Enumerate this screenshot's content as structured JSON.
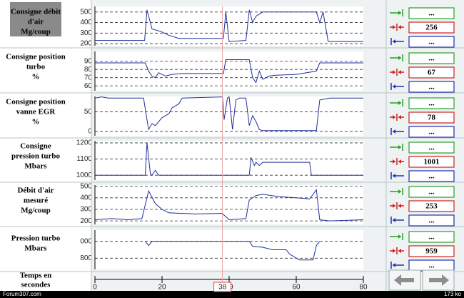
{
  "chart_data": [
    {
      "type": "line",
      "label_lines": [
        "Consigne débit",
        "d'air",
        "Mg/coup"
      ],
      "xlim": [
        0,
        80
      ],
      "ylim": [
        180,
        553
      ],
      "yticks": [
        200,
        300,
        400,
        500
      ],
      "grid": true,
      "color": "#1f2f9a",
      "x": [
        0,
        14.8,
        15.5,
        17,
        20,
        22,
        25,
        38.3,
        39,
        40,
        45,
        46,
        47,
        48,
        50,
        66,
        67,
        68,
        69.5,
        80
      ],
      "values": [
        230,
        230,
        520,
        340,
        310,
        280,
        250,
        250,
        500,
        220,
        230,
        520,
        400,
        460,
        500,
        500,
        400,
        500,
        220,
        220
      ],
      "readouts": [
        "...",
        256,
        "..."
      ]
    },
    {
      "type": "line",
      "label_lines": [
        "Consigne position",
        "turbo",
        "%"
      ],
      "xlim": [
        0,
        80
      ],
      "ylim": [
        54,
        102
      ],
      "yticks": [
        60,
        70,
        80,
        90
      ],
      "grid": true,
      "color": "#1f2f9a",
      "x": [
        0,
        15,
        16,
        17,
        18,
        19,
        21,
        23,
        26,
        38.3,
        39,
        46,
        47,
        48,
        49,
        50,
        52,
        54,
        60,
        66,
        67,
        80
      ],
      "values": [
        88,
        88,
        78,
        72,
        70,
        76,
        72,
        74,
        75,
        75,
        92,
        92,
        70,
        64,
        78,
        68,
        72,
        73,
        74,
        78,
        88,
        88
      ],
      "readouts": [
        "...",
        67,
        "..."
      ]
    },
    {
      "type": "line",
      "label_lines": [
        "Consigne position",
        "vanne EGR",
        "%"
      ],
      "xlim": [
        0,
        80
      ],
      "ylim": [
        -11,
        89
      ],
      "yticks": [
        0,
        50
      ],
      "grid": true,
      "color": "#1f2f9a",
      "x": [
        0,
        2,
        4,
        14.5,
        15.5,
        16,
        17,
        18,
        20,
        22,
        23,
        25,
        26,
        38,
        38.5,
        39.5,
        40,
        41,
        42,
        43,
        45,
        46,
        47,
        48,
        49,
        50,
        66,
        67,
        70,
        80
      ],
      "values": [
        85,
        88,
        85,
        85,
        30,
        5,
        20,
        15,
        35,
        45,
        60,
        70,
        85,
        88,
        30,
        85,
        88,
        5,
        80,
        85,
        85,
        15,
        40,
        25,
        5,
        2,
        2,
        80,
        85,
        85
      ],
      "readouts": [
        "...",
        78,
        "..."
      ]
    },
    {
      "type": "line",
      "label_lines": [
        "Consigne",
        "pression turbo",
        "Mbars"
      ],
      "xlim": [
        0,
        80
      ],
      "ylim": [
        970,
        1213
      ],
      "yticks": [
        1000,
        1100,
        1200
      ],
      "grid": true,
      "color": "#1f2f9a",
      "x": [
        0,
        15,
        15.5,
        16.5,
        17,
        18,
        19,
        46,
        46.5,
        47.5,
        48,
        49,
        50,
        64,
        64.5,
        80
      ],
      "values": [
        1000,
        1000,
        1200,
        1010,
        1000,
        1030,
        1000,
        1000,
        1110,
        1060,
        1080,
        1060,
        1080,
        1080,
        1000,
        1000
      ],
      "readouts": [
        "...",
        1001,
        "..."
      ]
    },
    {
      "type": "line",
      "label_lines": [
        "Débit d'air",
        "mesuré",
        "Mg/coup"
      ],
      "xlim": [
        0,
        80
      ],
      "ylim": [
        170,
        510
      ],
      "yticks": [
        200,
        300,
        400,
        500
      ],
      "grid": true,
      "color": "#1f2f9a",
      "x": [
        0,
        5,
        10,
        14,
        16,
        18,
        20,
        22,
        30,
        38,
        38.5,
        40,
        45,
        46,
        48,
        50,
        55,
        60,
        64,
        66,
        67,
        70,
        80
      ],
      "values": [
        210,
        220,
        210,
        220,
        460,
        350,
        300,
        270,
        260,
        265,
        250,
        210,
        220,
        380,
        420,
        430,
        410,
        400,
        390,
        470,
        210,
        200,
        210
      ],
      "readouts": [
        "...",
        253,
        "..."
      ]
    },
    {
      "type": "line",
      "label_lines": [
        "Pression turbo",
        "Mbars"
      ],
      "xlim": [
        0,
        80
      ],
      "ylim": [
        667,
        1133
      ],
      "yticks": [
        {
          "value": 1000,
          "label": "000"
        },
        800
      ],
      "grid": true,
      "color": "#1f2f9a",
      "x": [
        15,
        16,
        17,
        38,
        46,
        47,
        50,
        53,
        57,
        58,
        60,
        61,
        65,
        66,
        67
      ],
      "values": [
        1000,
        950,
        1000,
        1000,
        1000,
        940,
        930,
        900,
        900,
        850,
        800,
        780,
        780,
        950,
        1000
      ],
      "readouts": [
        "...",
        959,
        "..."
      ]
    }
  ],
  "time_axis": {
    "label_lines": [
      "Temps en",
      "secondes"
    ],
    "xlim": [
      0,
      80
    ],
    "xticks": [
      0,
      20,
      40,
      60,
      80
    ],
    "cursor": 38
  },
  "status_bar": {
    "left": "Forum307.com",
    "right": "173 ko"
  }
}
